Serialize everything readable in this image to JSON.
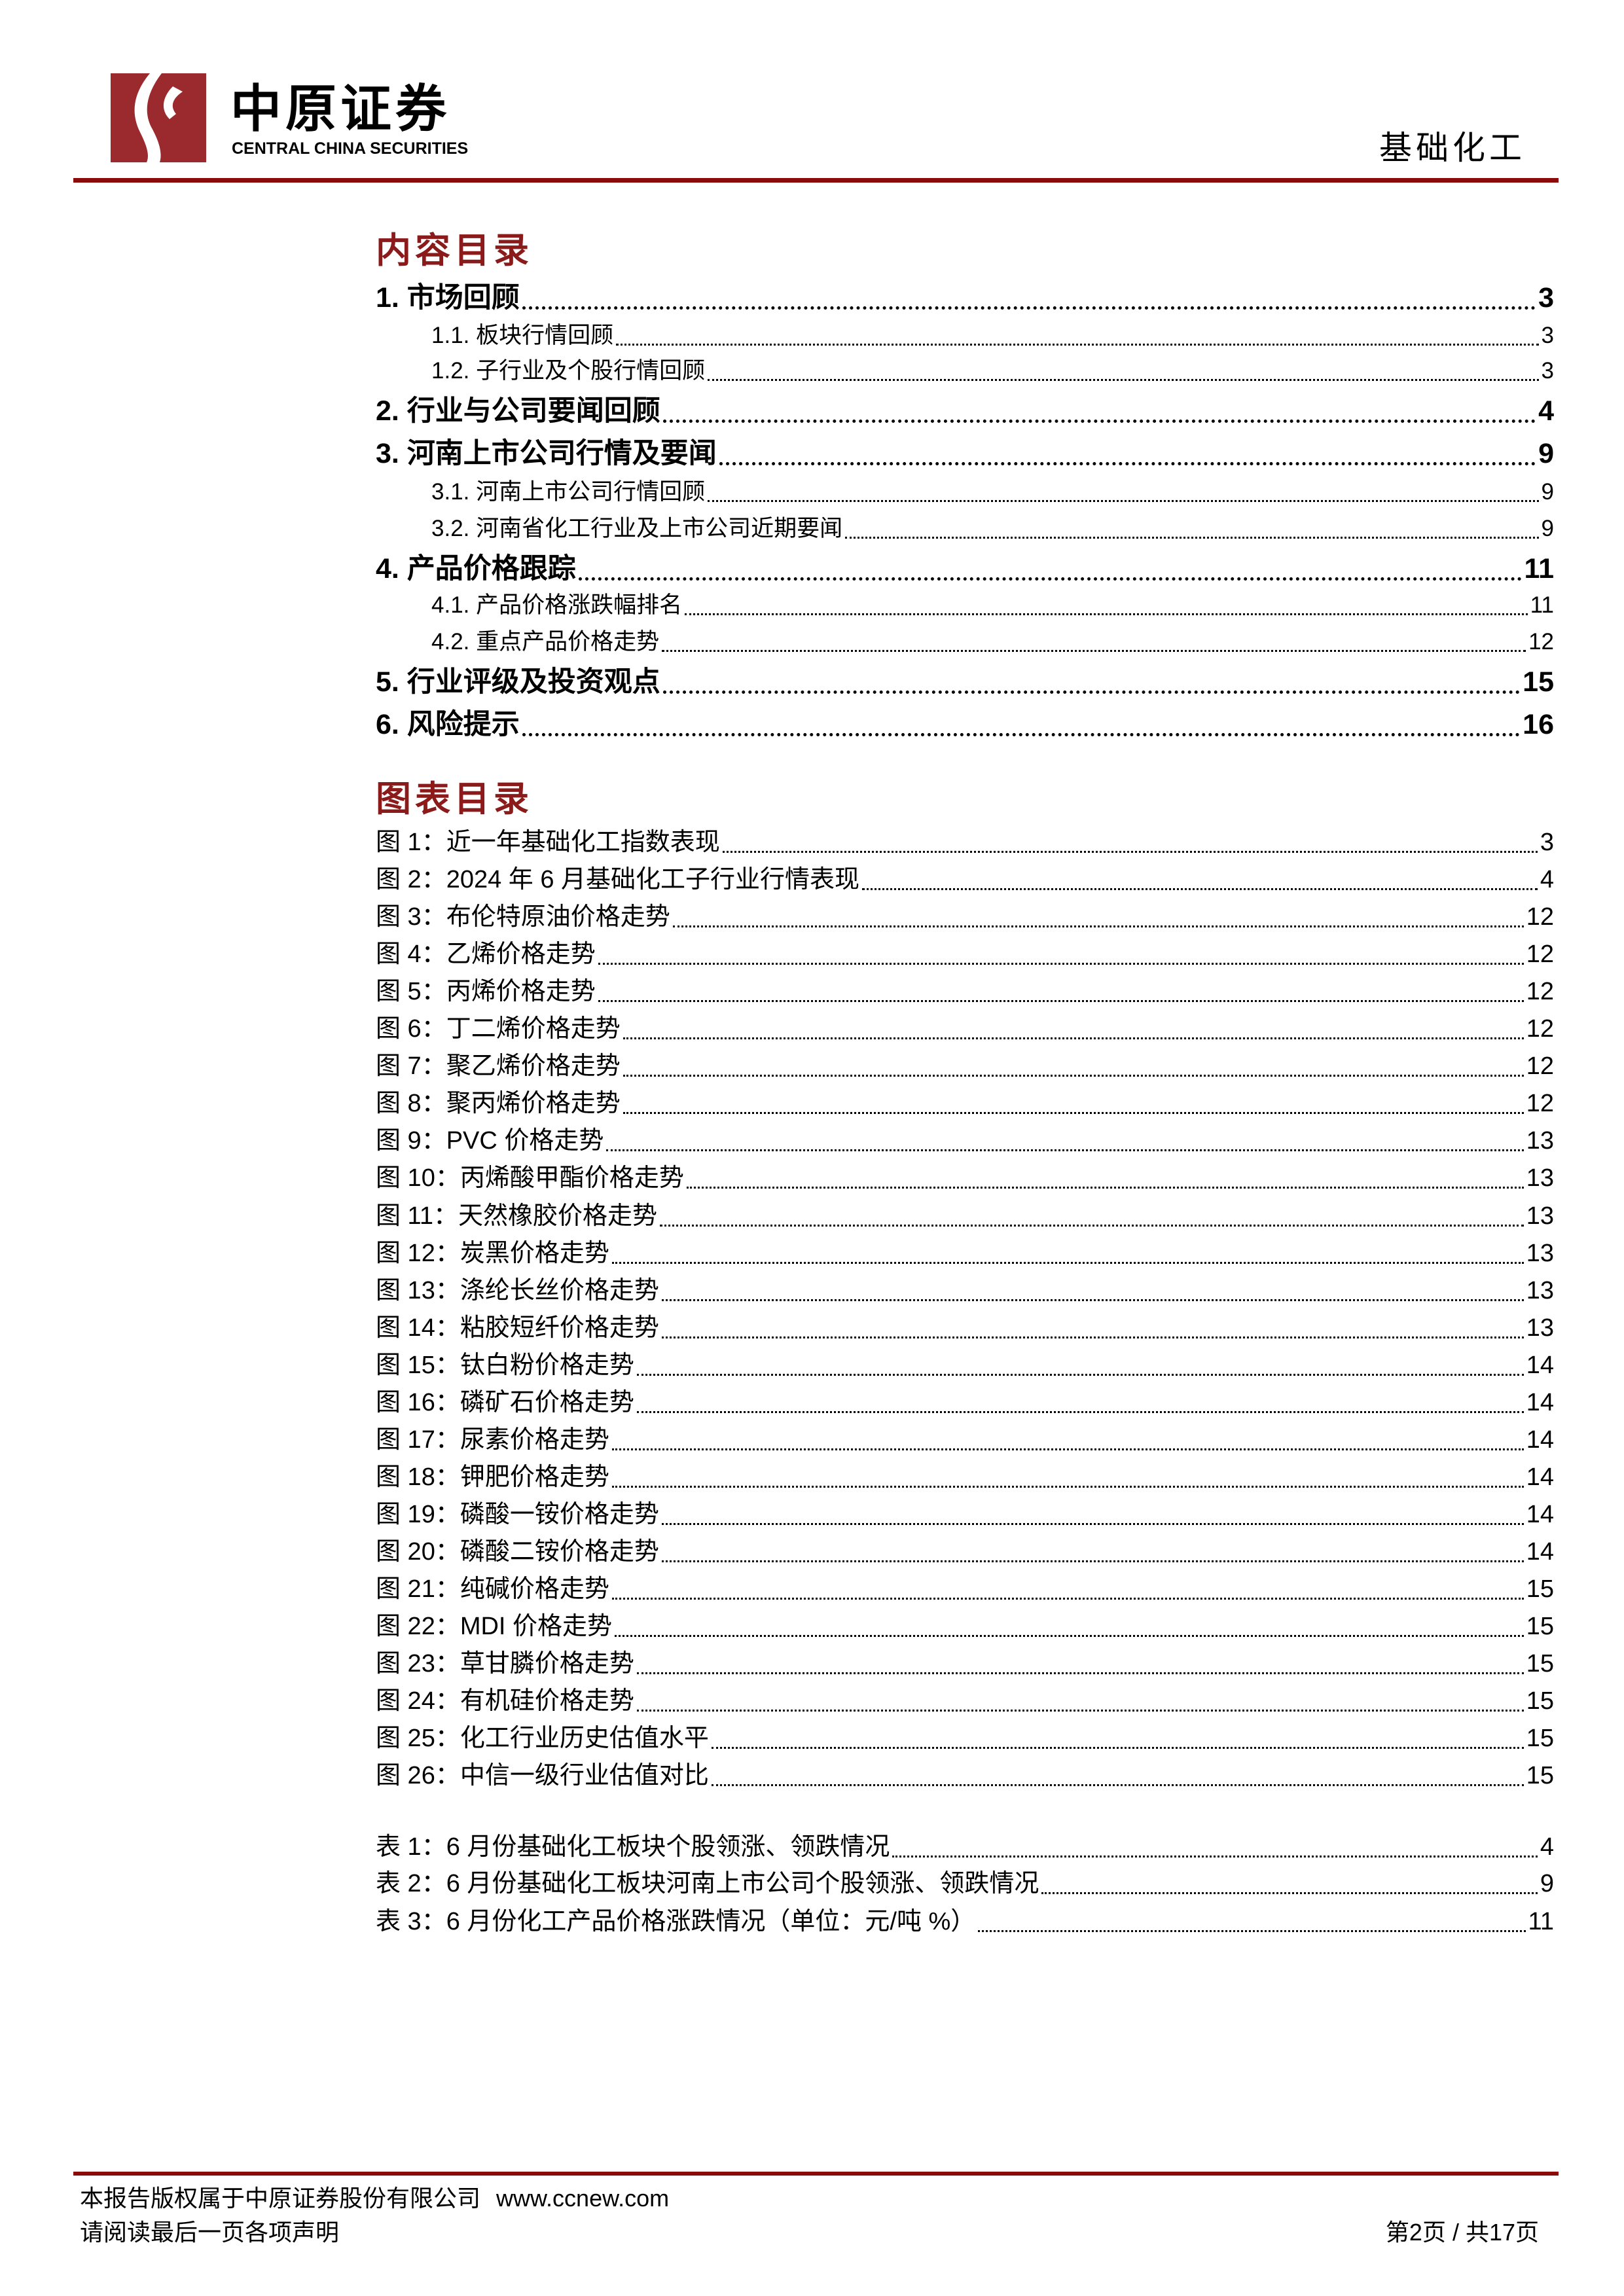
{
  "header": {
    "logo_cn": "中原证券",
    "logo_en": "CENTRAL CHINA SECURITIES",
    "section": "基础化工",
    "accent_color": "#8b0a0a"
  },
  "toc": {
    "title": "内容目录",
    "items": [
      {
        "level": 1,
        "label": "1. 市场回顾",
        "page": "3"
      },
      {
        "level": 2,
        "label": "1.1. 板块行情回顾",
        "page": "3"
      },
      {
        "level": 2,
        "label": "1.2. 子行业及个股行情回顾",
        "page": "3"
      },
      {
        "level": 1,
        "label": "2. 行业与公司要闻回顾",
        "page": "4"
      },
      {
        "level": 1,
        "label": "3. 河南上市公司行情及要闻",
        "page": "9"
      },
      {
        "level": 2,
        "label": "3.1. 河南上市公司行情回顾",
        "page": "9"
      },
      {
        "level": 2,
        "label": "3.2. 河南省化工行业及上市公司近期要闻",
        "page": "9"
      },
      {
        "level": 1,
        "label": "4. 产品价格跟踪",
        "page": "11"
      },
      {
        "level": 2,
        "label": "4.1. 产品价格涨跌幅排名",
        "page": "11"
      },
      {
        "level": 2,
        "label": "4.2. 重点产品价格走势",
        "page": "12"
      },
      {
        "level": 1,
        "label": "5. 行业评级及投资观点",
        "page": "15"
      },
      {
        "level": 1,
        "label": "6. 风险提示",
        "page": "16"
      }
    ]
  },
  "figures": {
    "title": "图表目录",
    "items": [
      {
        "label": "图 1：近一年基础化工指数表现",
        "page": "3"
      },
      {
        "label": "图 2：2024 年 6 月基础化工子行业行情表现",
        "page": "4"
      },
      {
        "label": "图 3：布伦特原油价格走势",
        "page": "12"
      },
      {
        "label": "图 4：乙烯价格走势",
        "page": "12"
      },
      {
        "label": "图 5：丙烯价格走势",
        "page": "12"
      },
      {
        "label": "图 6：丁二烯价格走势",
        "page": "12"
      },
      {
        "label": "图 7：聚乙烯价格走势",
        "page": "12"
      },
      {
        "label": "图 8：聚丙烯价格走势",
        "page": "12"
      },
      {
        "label": "图 9：PVC 价格走势",
        "page": "13"
      },
      {
        "label": "图 10：丙烯酸甲酯价格走势",
        "page": "13"
      },
      {
        "label": "图 11：天然橡胶价格走势",
        "page": "13"
      },
      {
        "label": "图 12：炭黑价格走势",
        "page": "13"
      },
      {
        "label": "图 13：涤纶长丝价格走势",
        "page": "13"
      },
      {
        "label": "图 14：粘胶短纤价格走势",
        "page": "13"
      },
      {
        "label": "图 15：钛白粉价格走势",
        "page": "14"
      },
      {
        "label": "图 16：磷矿石价格走势",
        "page": "14"
      },
      {
        "label": "图 17：尿素价格走势",
        "page": "14"
      },
      {
        "label": "图 18：钾肥价格走势",
        "page": "14"
      },
      {
        "label": "图 19：磷酸一铵价格走势",
        "page": "14"
      },
      {
        "label": "图 20：磷酸二铵价格走势",
        "page": "14"
      },
      {
        "label": "图 21：纯碱价格走势",
        "page": "15"
      },
      {
        "label": "图 22：MDI 价格走势",
        "page": "15"
      },
      {
        "label": "图 23：草甘膦价格走势",
        "page": "15"
      },
      {
        "label": "图 24：有机硅价格走势",
        "page": "15"
      },
      {
        "label": "图 25：化工行业历史估值水平",
        "page": "15"
      },
      {
        "label": "图 26：中信一级行业估值对比",
        "page": "15"
      }
    ],
    "tables": [
      {
        "label": "表 1：6 月份基础化工板块个股领涨、领跌情况",
        "page": "4"
      },
      {
        "label": "表 2：6 月份基础化工板块河南上市公司个股领涨、领跌情况",
        "page": "9"
      },
      {
        "label": "表 3：6 月份化工产品价格涨跌情况（单位：元/吨 %）",
        "page": "11"
      }
    ]
  },
  "footer": {
    "copyright": "本报告版权属于中原证券股份有限公司",
    "website": "www.ccnew.com",
    "disclaimer": "请阅读最后一页各项声明",
    "page_info": "第2页 / 共17页"
  }
}
